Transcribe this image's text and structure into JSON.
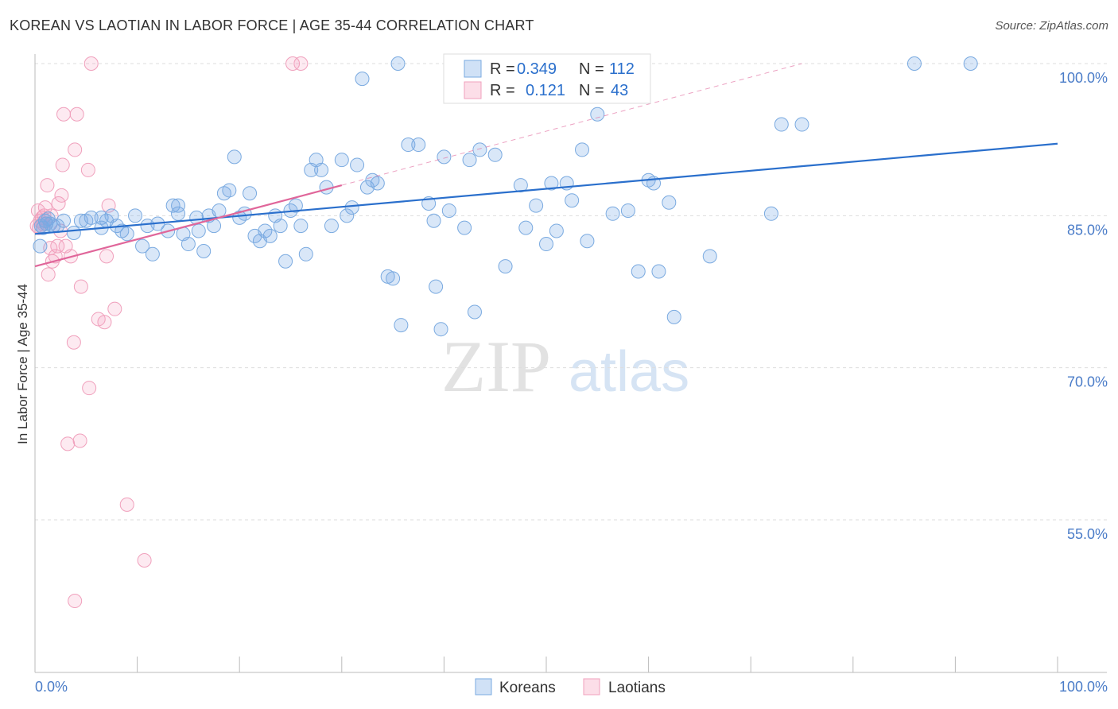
{
  "title": "KOREAN VS LAOTIAN IN LABOR FORCE | AGE 35-44 CORRELATION CHART",
  "source": "Source: ZipAtlas.com",
  "watermark": {
    "zip": "ZIP",
    "atlas": "atlas"
  },
  "colors": {
    "korean_fill": "rgba(120,170,230,0.28)",
    "korean_stroke": "#7aaae0",
    "korean_line": "#2a6fcc",
    "laotian_fill": "rgba(245,160,190,0.22)",
    "laotian_stroke": "#f0a0bc",
    "laotian_line": "#e0669a",
    "tick_label": "#4a7cc8",
    "grid": "#dddddd"
  },
  "legend_top": [
    {
      "r_label": "R =",
      "r_value": "0.349",
      "n_label": "N =",
      "n_value": "112"
    },
    {
      "r_label": "R =",
      "r_value": "0.121",
      "n_label": "N =",
      "n_value": "43"
    }
  ],
  "legend_bottom": [
    "Koreans",
    "Laotians"
  ],
  "chart_data": {
    "type": "scatter",
    "title": "KOREAN VS LAOTIAN IN LABOR FORCE | AGE 35-44 CORRELATION CHART",
    "xlabel": "",
    "ylabel": "In Labor Force | Age 35-44",
    "xlim": [
      0,
      100
    ],
    "ylim": [
      42,
      101.5
    ],
    "x_tick_labels": [
      "0.0%",
      "100.0%"
    ],
    "y_ticks": [
      100,
      85,
      70,
      55
    ],
    "y_tick_labels": [
      "100.0%",
      "85.0%",
      "70.0%",
      "55.0%"
    ],
    "grid": "horizontal dashed",
    "legend_position": "top-center",
    "series": [
      {
        "name": "Koreans",
        "r": 0.349,
        "n": 112,
        "trend": {
          "x": [
            0,
            100
          ],
          "y": [
            83.2,
            92.1
          ],
          "style": "solid"
        },
        "points": [
          [
            0.5,
            82.0
          ],
          [
            0.6,
            84.0
          ],
          [
            0.8,
            83.8
          ],
          [
            1.0,
            84.5
          ],
          [
            1.1,
            84.2
          ],
          [
            1.3,
            84.7
          ],
          [
            1.5,
            84.2
          ],
          [
            1.8,
            84.0
          ],
          [
            2.2,
            84.0
          ],
          [
            2.8,
            84.5
          ],
          [
            3.8,
            83.3
          ],
          [
            4.5,
            84.5
          ],
          [
            5.0,
            84.5
          ],
          [
            5.5,
            84.8
          ],
          [
            6.5,
            84.8
          ],
          [
            6.5,
            83.8
          ],
          [
            7.0,
            84.5
          ],
          [
            7.5,
            85.0
          ],
          [
            8.0,
            84.0
          ],
          [
            8.5,
            83.5
          ],
          [
            9.0,
            83.2
          ],
          [
            9.8,
            85.0
          ],
          [
            10.5,
            82.0
          ],
          [
            11.0,
            84.0
          ],
          [
            11.5,
            81.2
          ],
          [
            12.0,
            84.2
          ],
          [
            13.5,
            86.0
          ],
          [
            13.0,
            83.5
          ],
          [
            14.0,
            85.2
          ],
          [
            14.0,
            86.0
          ],
          [
            14.5,
            83.2
          ],
          [
            15.0,
            82.2
          ],
          [
            15.8,
            84.8
          ],
          [
            16.0,
            83.5
          ],
          [
            16.5,
            81.5
          ],
          [
            17.0,
            85.0
          ],
          [
            17.5,
            84.0
          ],
          [
            18.0,
            85.5
          ],
          [
            18.5,
            87.2
          ],
          [
            19.0,
            87.5
          ],
          [
            19.5,
            90.8
          ],
          [
            20.0,
            84.8
          ],
          [
            20.5,
            85.2
          ],
          [
            21.0,
            87.2
          ],
          [
            21.5,
            83.0
          ],
          [
            22.0,
            82.5
          ],
          [
            22.5,
            83.5
          ],
          [
            23.0,
            83.0
          ],
          [
            23.5,
            85.0
          ],
          [
            24.0,
            84.0
          ],
          [
            24.5,
            80.5
          ],
          [
            25.0,
            85.5
          ],
          [
            25.5,
            86.0
          ],
          [
            26.0,
            84.0
          ],
          [
            26.5,
            81.2
          ],
          [
            27.0,
            89.5
          ],
          [
            27.5,
            90.5
          ],
          [
            28.0,
            89.5
          ],
          [
            28.5,
            87.8
          ],
          [
            29.0,
            84.0
          ],
          [
            30.0,
            90.5
          ],
          [
            30.5,
            85.0
          ],
          [
            31.0,
            85.8
          ],
          [
            31.5,
            90.0
          ],
          [
            32.0,
            98.5
          ],
          [
            32.5,
            87.8
          ],
          [
            33.0,
            88.5
          ],
          [
            33.5,
            88.2
          ],
          [
            34.5,
            79.0
          ],
          [
            35.0,
            78.8
          ],
          [
            35.5,
            100.0
          ],
          [
            35.8,
            74.2
          ],
          [
            36.5,
            92.0
          ],
          [
            37.5,
            92.0
          ],
          [
            38.5,
            86.2
          ],
          [
            39.0,
            84.5
          ],
          [
            39.2,
            78.0
          ],
          [
            39.7,
            73.8
          ],
          [
            40.0,
            90.8
          ],
          [
            40.5,
            85.5
          ],
          [
            42.0,
            83.8
          ],
          [
            42.5,
            90.5
          ],
          [
            43.0,
            75.5
          ],
          [
            43.5,
            91.5
          ],
          [
            45.0,
            91.0
          ],
          [
            46.0,
            80.0
          ],
          [
            47.5,
            88.0
          ],
          [
            48.0,
            83.8
          ],
          [
            49.0,
            86.0
          ],
          [
            50.0,
            82.2
          ],
          [
            50.5,
            88.2
          ],
          [
            51.0,
            83.5
          ],
          [
            52.0,
            88.2
          ],
          [
            52.5,
            86.5
          ],
          [
            53.5,
            91.5
          ],
          [
            54.0,
            82.5
          ],
          [
            55.0,
            95.0
          ],
          [
            55.5,
            100.0
          ],
          [
            56.5,
            85.2
          ],
          [
            58.0,
            85.5
          ],
          [
            59.0,
            79.5
          ],
          [
            60.0,
            88.5
          ],
          [
            60.5,
            88.2
          ],
          [
            61.0,
            79.5
          ],
          [
            62.0,
            86.3
          ],
          [
            62.5,
            75.0
          ],
          [
            66.0,
            81.0
          ],
          [
            72.0,
            85.2
          ],
          [
            73.0,
            94.0
          ],
          [
            75.0,
            94.0
          ],
          [
            86.0,
            100.0
          ],
          [
            91.5,
            100.0
          ]
        ]
      },
      {
        "name": "Laotians",
        "r": 0.121,
        "n": 43,
        "trend": {
          "x": [
            0,
            30
          ],
          "y": [
            80.0,
            88.0
          ],
          "style": "solid",
          "extension": {
            "x": [
              30,
              75
            ],
            "y": [
              88.0,
              100.0
            ],
            "style": "dashed"
          }
        },
        "points": [
          [
            0.2,
            84.0
          ],
          [
            0.3,
            85.5
          ],
          [
            0.4,
            83.8
          ],
          [
            0.5,
            84.5
          ],
          [
            0.6,
            84.0
          ],
          [
            0.7,
            84.8
          ],
          [
            0.8,
            84.2
          ],
          [
            0.9,
            85.0
          ],
          [
            1.0,
            85.8
          ],
          [
            1.1,
            84.2
          ],
          [
            1.2,
            88.0
          ],
          [
            1.3,
            79.2
          ],
          [
            1.5,
            81.8
          ],
          [
            1.7,
            80.5
          ],
          [
            2.0,
            81.0
          ],
          [
            2.2,
            82.0
          ],
          [
            2.3,
            86.2
          ],
          [
            2.5,
            83.5
          ],
          [
            2.6,
            87.0
          ],
          [
            2.7,
            90.0
          ],
          [
            2.8,
            95.0
          ],
          [
            3.0,
            82.0
          ],
          [
            3.2,
            62.5
          ],
          [
            3.5,
            81.0
          ],
          [
            3.8,
            72.5
          ],
          [
            3.9,
            91.5
          ],
          [
            4.1,
            95.0
          ],
          [
            4.4,
            62.8
          ],
          [
            4.5,
            78.0
          ],
          [
            5.2,
            89.5
          ],
          [
            5.3,
            68.0
          ],
          [
            5.5,
            100.0
          ],
          [
            6.2,
            74.8
          ],
          [
            6.8,
            74.5
          ],
          [
            7.0,
            81.0
          ],
          [
            7.2,
            86.0
          ],
          [
            7.8,
            75.8
          ],
          [
            9.0,
            56.5
          ],
          [
            10.7,
            51.0
          ],
          [
            3.9,
            47.0
          ],
          [
            25.2,
            100.0
          ],
          [
            26.0,
            100.0
          ],
          [
            1.6,
            85.0
          ]
        ]
      }
    ]
  }
}
